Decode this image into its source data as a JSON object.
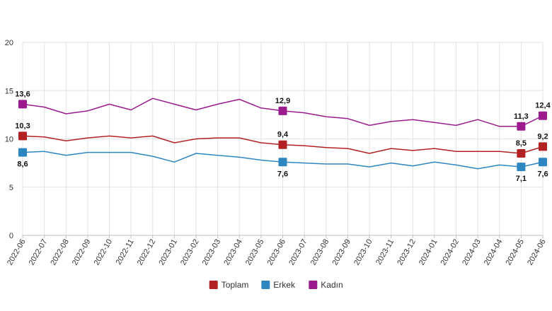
{
  "chart_data": {
    "type": "line",
    "categories": [
      "2022-06",
      "2022-07",
      "2022-08",
      "2022-09",
      "2022-10",
      "2022-11",
      "2022-12",
      "2023-01",
      "2023-02",
      "2023-03",
      "2023-04",
      "2023-05",
      "2023-06",
      "2023-07",
      "2023-08",
      "2023-09",
      "2023-10",
      "2023-11",
      "2023-12",
      "2024-01",
      "2024-02",
      "2024-03",
      "2024-04",
      "2024-05",
      "2024-06"
    ],
    "ylim": [
      0,
      20
    ],
    "yticks": [
      "0",
      "5",
      "10",
      "15",
      "20"
    ],
    "grid": true,
    "legend_position": "bottom",
    "series": [
      {
        "name": "Toplam",
        "color": "#b22222",
        "values": [
          10.3,
          10.2,
          9.8,
          10.1,
          10.3,
          10.1,
          10.3,
          9.6,
          10.0,
          10.1,
          10.1,
          9.6,
          9.4,
          9.3,
          9.1,
          9.0,
          8.5,
          9.0,
          8.8,
          9.0,
          8.7,
          8.7,
          8.7,
          8.5,
          9.2
        ],
        "labels": [
          {
            "index": 0,
            "text": "10,3",
            "pos": "above"
          },
          {
            "index": 12,
            "text": "9,4",
            "pos": "above"
          },
          {
            "index": 23,
            "text": "8,5",
            "pos": "above"
          },
          {
            "index": 24,
            "text": "9,2",
            "pos": "above"
          }
        ]
      },
      {
        "name": "Erkek",
        "color": "#2e86c1",
        "values": [
          8.6,
          8.7,
          8.3,
          8.6,
          8.6,
          8.6,
          8.2,
          7.6,
          8.5,
          8.3,
          8.1,
          7.8,
          7.6,
          7.5,
          7.4,
          7.4,
          7.1,
          7.5,
          7.2,
          7.6,
          7.3,
          6.9,
          7.3,
          7.1,
          7.6
        ],
        "labels": [
          {
            "index": 0,
            "text": "8,6",
            "pos": "below"
          },
          {
            "index": 12,
            "text": "7,6",
            "pos": "below"
          },
          {
            "index": 23,
            "text": "7,1",
            "pos": "below"
          },
          {
            "index": 24,
            "text": "7,6",
            "pos": "below"
          }
        ]
      },
      {
        "name": "Kadın",
        "color": "#9b1b8e",
        "values": [
          13.6,
          13.3,
          12.6,
          12.9,
          13.6,
          13.0,
          14.2,
          13.6,
          13.0,
          13.6,
          14.1,
          13.2,
          12.9,
          12.7,
          12.3,
          12.1,
          11.4,
          11.8,
          12.0,
          11.7,
          11.4,
          12.0,
          11.3,
          11.3,
          12.4
        ],
        "labels": [
          {
            "index": 0,
            "text": "13,6",
            "pos": "above"
          },
          {
            "index": 12,
            "text": "12,9",
            "pos": "above"
          },
          {
            "index": 23,
            "text": "11,3",
            "pos": "above"
          },
          {
            "index": 24,
            "text": "12,4",
            "pos": "above"
          }
        ]
      }
    ]
  }
}
